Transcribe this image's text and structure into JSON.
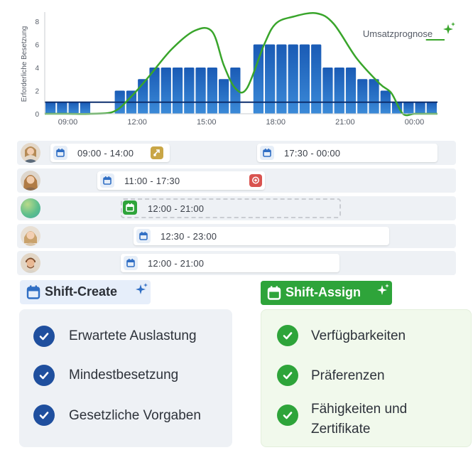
{
  "chart_data": {
    "type": "bar",
    "ylabel": "Erforderliche Besetzung",
    "yticks": [
      "0",
      "2",
      "4",
      "6",
      "8"
    ],
    "ylim": [
      0,
      8.8
    ],
    "xtick_labels": [
      "09:00",
      "12:00",
      "15:00",
      "18:00",
      "21:00",
      "00:00"
    ],
    "x_range": [
      "08:00",
      "01:00"
    ],
    "bar_start_times": [
      "08:00",
      "08:30",
      "09:00",
      "09:30",
      "10:00",
      "10:30",
      "11:00",
      "11:30",
      "12:00",
      "12:30",
      "13:00",
      "13:30",
      "14:00",
      "14:30",
      "15:00",
      "15:30",
      "16:00",
      "16:30",
      "17:00",
      "17:30",
      "18:00",
      "18:30",
      "19:00",
      "19:30",
      "20:00",
      "20:30",
      "21:00",
      "21:30",
      "22:00",
      "22:30",
      "23:00",
      "23:30",
      "00:00",
      "00:30"
    ],
    "values": [
      1,
      1,
      1,
      1,
      0,
      0,
      2,
      2,
      3,
      4,
      4,
      4,
      4,
      4,
      4,
      3,
      4,
      0,
      6,
      6,
      6,
      6,
      6,
      6,
      4,
      4,
      4,
      3,
      3,
      2,
      1,
      1,
      1,
      1
    ],
    "minimum_line": 1,
    "series": [
      {
        "name": "Umsatzprognose",
        "color": "#39a52b",
        "x": [
          "08:00",
          "09:00",
          "10:00",
          "11:00",
          "11:45",
          "12:30",
          "13:30",
          "14:30",
          "15:15",
          "15:45",
          "16:15",
          "16:45",
          "17:30",
          "18:00",
          "18:45",
          "19:45",
          "20:30",
          "21:30",
          "22:30",
          "23:00",
          "23:30",
          "00:00",
          "00:30",
          "01:00"
        ],
        "y": [
          0,
          0,
          0,
          0.2,
          1.5,
          3.2,
          5.6,
          7.2,
          7.1,
          4.2,
          2.2,
          2.2,
          6.0,
          7.8,
          8.4,
          8.7,
          7.8,
          4.8,
          2.6,
          1.8,
          0,
          0,
          0,
          0
        ]
      }
    ],
    "bar_color": "#2a6fc4",
    "line_color": "#39a52b"
  },
  "chart_title_series": "Umsatzprognose",
  "rows": [
    {
      "avatar": "person-avatar",
      "shifts": [
        {
          "time": "09:00 - 14:00",
          "badge": "swap"
        },
        {
          "time": "17:30 - 00:00"
        }
      ]
    },
    {
      "avatar": "person-avatar",
      "shifts": [
        {
          "time": "11:00 - 17:30",
          "badge": "comment"
        }
      ]
    },
    {
      "avatar": "gradient-avatar",
      "shifts": [
        {
          "time": "12:00 - 21:00",
          "style": "dashed"
        }
      ]
    },
    {
      "avatar": "person-avatar",
      "shifts": [
        {
          "time": "12:30 - 23:00"
        }
      ]
    },
    {
      "avatar": "person-avatar",
      "shifts": [
        {
          "time": "12:00 - 21:00"
        }
      ]
    }
  ],
  "shift_create": {
    "label": "Shift-Create",
    "color": "#2f6ec4",
    "items": [
      "Erwartete Auslastung",
      "Mindestbesetzung",
      "Gesetzliche Vorgaben"
    ]
  },
  "shift_assign": {
    "label": "Shift-Assign",
    "color": "#2ea43a",
    "items": [
      "Verfügbarkeiten",
      "Präferenzen",
      "Fähigkeiten und",
      "Zertifikate"
    ]
  }
}
